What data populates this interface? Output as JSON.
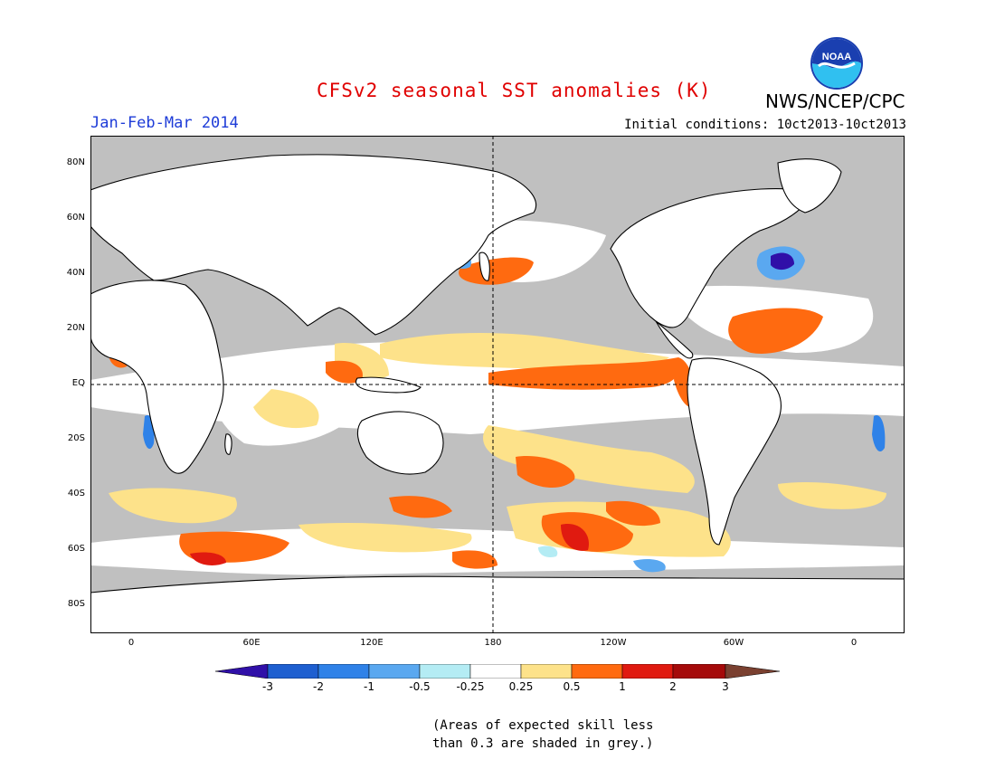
{
  "title": "CFSv2 seasonal SST anomalies (K)",
  "organization": "NWS/NCEP/CPC",
  "logo_text": "NOAA",
  "period": "Jan-Feb-Mar 2014",
  "initial_conditions": "Initial conditions: 10ct2013-10ct2013",
  "note_line1": "(Areas of expected skill less",
  "note_line2": "than 0.3 are shaded in grey.)",
  "map": {
    "lat_labels": [
      "80N",
      "60N",
      "40N",
      "20N",
      "EQ",
      "20S",
      "40S",
      "60S",
      "80S"
    ],
    "lon_labels": [
      "0",
      "60E",
      "120E",
      "180",
      "120W",
      "60W",
      "0"
    ],
    "reference_lines": [
      "EQ",
      "180"
    ],
    "land_color": "#ffffff",
    "low_skill_color": "#c0c0c0"
  },
  "colorbar": {
    "labels": [
      "-3",
      "-2",
      "-1",
      "-0.5",
      "-0.25",
      "0.25",
      "0.5",
      "1",
      "2",
      "3"
    ],
    "colors": [
      "#3010a8",
      "#1e5fd0",
      "#2f82e8",
      "#5aa8f0",
      "#b4ecf4",
      "#ffffff",
      "#fde28a",
      "#ff6a10",
      "#e01a10",
      "#a50a0a",
      "#7a4030"
    ],
    "units": "K"
  },
  "anomaly_features": [
    {
      "label": "Equatorial Pacific warm tongue",
      "value": 1
    },
    {
      "label": "North Pacific warm patch",
      "value": 1
    },
    {
      "label": "South Pacific warm patch",
      "value": 1
    },
    {
      "label": "North Atlantic cold spot",
      "value": -3
    },
    {
      "label": "Tropical North Atlantic warm",
      "value": 1
    },
    {
      "label": "Southern Indian Ocean warm band",
      "value": 1
    }
  ]
}
